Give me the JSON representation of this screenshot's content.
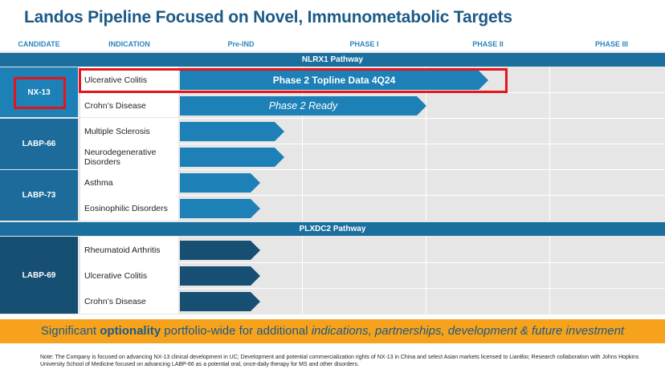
{
  "title": "Landos Pipeline Focused on Novel, Immunometabolic Targets",
  "columns": {
    "candidate": "CANDIDATE",
    "indication": "INDICATION",
    "preind": "Pre-IND",
    "phase1": "PHASE I",
    "phase2": "PHASE II",
    "phase3": "PHASE III"
  },
  "pathways": {
    "nlrx1": "NLRX1 Pathway",
    "plxdc2": "PLXDC2 Pathway"
  },
  "candidates": {
    "nx13": "NX-13",
    "labp66": "LABP-66",
    "labp73": "LABP-73",
    "labp69": "LABP-69"
  },
  "indications": {
    "uc1": "Ulcerative Colitis",
    "cd1": "Crohn’s Disease",
    "ms": "Multiple Sclerosis",
    "neuro": "Neurodegenerative Disorders",
    "asthma": "Asthma",
    "eos": "Eosinophilic Disorders",
    "ra": "Rheumatoid Arthritis",
    "uc2": "Ulcerative Colitis",
    "cd2": "Crohn’s Disease"
  },
  "bar_labels": {
    "uc1": "Phase 2 Topline Data 4Q24",
    "cd1": "Phase 2 Ready"
  },
  "banner": {
    "p1": "Significant ",
    "p2": "optionality",
    "p3": " portfolio-wide for additional ",
    "p4": "indications, partnerships, development & future investment"
  },
  "note": "Note: The Company is focused on advancing NX-13 clinical development in UC; Development and potential commercialization rights of NX-13 in China and select Asian markets licensed to LianBio; Research collaboration with Johns Hopkins University School of Medicine focused on advancing LABP-66 as a potential oral, once-daily therapy for MS and other disorders.",
  "colors": {
    "title": "#1c5a86",
    "header": "#2a86c2",
    "pathway": "#1a6f9e",
    "bar_light": "#1d80b6",
    "bar_dark": "#164f72",
    "highlight": "#e3141b",
    "banner": "#f7a21c"
  },
  "chart_data": {
    "type": "bar",
    "phases": [
      "Pre-IND",
      "PHASE I",
      "PHASE II",
      "PHASE III"
    ],
    "series": [
      {
        "pathway": "NLRX1 Pathway",
        "candidate": "NX-13",
        "indication": "Ulcerative Colitis",
        "progress_phase": 2.5,
        "label": "Phase 2 Topline Data 4Q24"
      },
      {
        "pathway": "NLRX1 Pathway",
        "candidate": "NX-13",
        "indication": "Crohn’s Disease",
        "progress_phase": 2.0,
        "label": "Phase 2 Ready"
      },
      {
        "pathway": "NLRX1 Pathway",
        "candidate": "LABP-66",
        "indication": "Multiple Sclerosis",
        "progress_phase": 0.85
      },
      {
        "pathway": "NLRX1 Pathway",
        "candidate": "LABP-66",
        "indication": "Neurodegenerative Disorders",
        "progress_phase": 0.85
      },
      {
        "pathway": "NLRX1 Pathway",
        "candidate": "LABP-73",
        "indication": "Asthma",
        "progress_phase": 0.65
      },
      {
        "pathway": "NLRX1 Pathway",
        "candidate": "LABP-73",
        "indication": "Eosinophilic Disorders",
        "progress_phase": 0.65
      },
      {
        "pathway": "PLXDC2 Pathway",
        "candidate": "LABP-69",
        "indication": "Rheumatoid Arthritis",
        "progress_phase": 0.65
      },
      {
        "pathway": "PLXDC2 Pathway",
        "candidate": "LABP-69",
        "indication": "Ulcerative Colitis",
        "progress_phase": 0.65
      },
      {
        "pathway": "PLXDC2 Pathway",
        "candidate": "LABP-69",
        "indication": "Crohn’s Disease",
        "progress_phase": 0.65
      }
    ]
  }
}
